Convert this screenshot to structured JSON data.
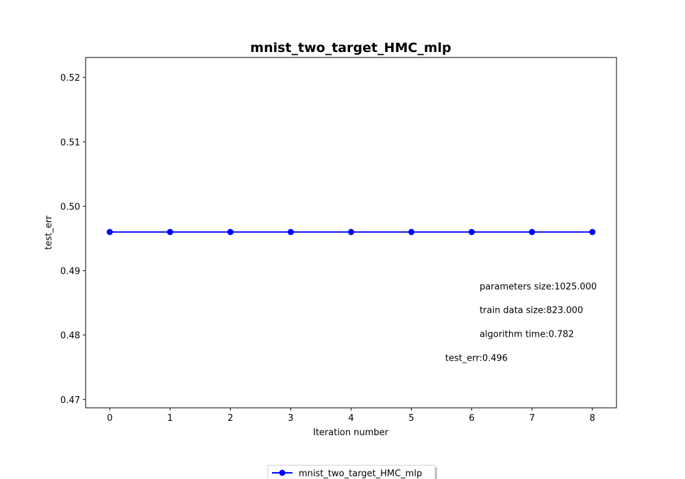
{
  "chart_data": {
    "type": "line",
    "title": "mnist_two_target_HMC_mlp",
    "xlabel": "Iteration number",
    "ylabel": "test_err",
    "x": [
      0,
      1,
      2,
      3,
      4,
      5,
      6,
      7,
      8
    ],
    "xlim": [
      -0.4,
      8.4
    ],
    "ylim": [
      0.4687,
      0.5231
    ],
    "xticks": [
      0,
      1,
      2,
      3,
      4,
      5,
      6,
      7,
      8
    ],
    "yticks": [
      "0.47",
      "0.48",
      "0.49",
      "0.50",
      "0.51",
      "0.52"
    ],
    "grid": false,
    "legend_position": "bottom-center",
    "series": [
      {
        "name": "mnist_two_target_HMC_mlp",
        "color": "#0000ff",
        "marker": "circle",
        "values": [
          0.496,
          0.496,
          0.496,
          0.496,
          0.496,
          0.496,
          0.496,
          0.496,
          0.496
        ]
      }
    ],
    "annotations": [
      {
        "text": "parameters size:1025.000",
        "x": 6.13,
        "y": 0.4871
      },
      {
        "text": "train data size:823.000",
        "x": 6.13,
        "y": 0.4834
      },
      {
        "text": "algorithm time:0.782",
        "x": 6.13,
        "y": 0.4797
      },
      {
        "text": "test_err:0.496",
        "x": 5.56,
        "y": 0.476
      }
    ]
  }
}
